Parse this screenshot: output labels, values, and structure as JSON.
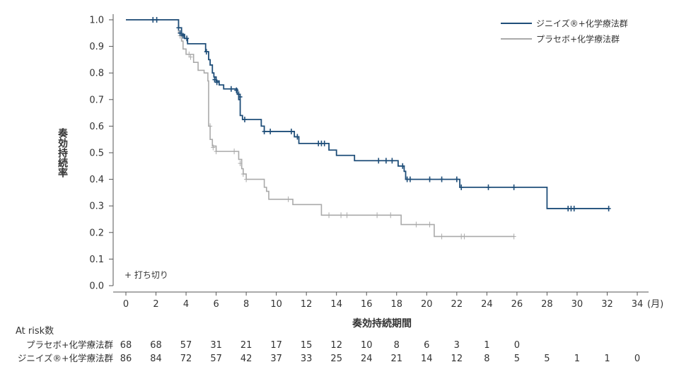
{
  "chart_data": {
    "type": "line",
    "subtype": "kaplan-meier",
    "ylabel": "奏効持続率",
    "xlabel": "奏効持続期間",
    "x_unit": "(月)",
    "xlim": [
      0,
      34
    ],
    "ylim": [
      0,
      1
    ],
    "x_ticks": [
      0,
      2,
      4,
      6,
      8,
      10,
      12,
      14,
      16,
      18,
      20,
      22,
      24,
      26,
      28,
      30,
      32,
      34
    ],
    "y_ticks": [
      0.0,
      0.1,
      0.2,
      0.3,
      0.4,
      0.5,
      0.6,
      0.7,
      0.8,
      0.9,
      1.0
    ],
    "y_tick_labels": [
      "0.0",
      "0.1",
      "0.2",
      "0.3",
      "0.4",
      "0.5",
      "0.6",
      "0.7",
      "0.8",
      "0.9",
      "1.0"
    ],
    "censor_note": "+ 打ち切り",
    "series": [
      {
        "name": "ジニイズ®+化学療法群",
        "color": "#1f4e79",
        "steps": [
          [
            0,
            1.0
          ],
          [
            3.5,
            0.97
          ],
          [
            3.7,
            0.945
          ],
          [
            3.9,
            0.93
          ],
          [
            4.1,
            0.91
          ],
          [
            5.3,
            0.88
          ],
          [
            5.5,
            0.85
          ],
          [
            5.6,
            0.83
          ],
          [
            5.75,
            0.8
          ],
          [
            5.85,
            0.785
          ],
          [
            6.0,
            0.77
          ],
          [
            6.2,
            0.755
          ],
          [
            6.5,
            0.74
          ],
          [
            7.4,
            0.72
          ],
          [
            7.5,
            0.7
          ],
          [
            7.6,
            0.64
          ],
          [
            7.75,
            0.625
          ],
          [
            9.0,
            0.6
          ],
          [
            9.2,
            0.58
          ],
          [
            11.2,
            0.56
          ],
          [
            11.5,
            0.535
          ],
          [
            13.5,
            0.51
          ],
          [
            14.0,
            0.49
          ],
          [
            15.2,
            0.47
          ],
          [
            18.1,
            0.45
          ],
          [
            18.5,
            0.43
          ],
          [
            18.6,
            0.4
          ],
          [
            22.2,
            0.37
          ],
          [
            28.0,
            0.29
          ]
        ],
        "end_x": 32.1,
        "censors": [
          [
            1.8,
            1.0
          ],
          [
            2.05,
            1.0
          ],
          [
            3.5,
            0.97
          ],
          [
            3.6,
            0.95
          ],
          [
            3.8,
            0.94
          ],
          [
            4.05,
            0.93
          ],
          [
            5.35,
            0.88
          ],
          [
            5.9,
            0.775
          ],
          [
            6.05,
            0.765
          ],
          [
            7.0,
            0.74
          ],
          [
            7.35,
            0.735
          ],
          [
            7.5,
            0.72
          ],
          [
            7.6,
            0.71
          ],
          [
            7.9,
            0.625
          ],
          [
            9.2,
            0.58
          ],
          [
            9.6,
            0.58
          ],
          [
            11.0,
            0.58
          ],
          [
            11.4,
            0.56
          ],
          [
            12.8,
            0.535
          ],
          [
            13.0,
            0.535
          ],
          [
            13.2,
            0.535
          ],
          [
            16.8,
            0.47
          ],
          [
            17.3,
            0.47
          ],
          [
            17.7,
            0.47
          ],
          [
            18.4,
            0.45
          ],
          [
            18.7,
            0.4
          ],
          [
            18.9,
            0.4
          ],
          [
            20.2,
            0.4
          ],
          [
            21.0,
            0.4
          ],
          [
            22.0,
            0.4
          ],
          [
            22.3,
            0.37
          ],
          [
            24.1,
            0.37
          ],
          [
            25.8,
            0.37
          ],
          [
            29.4,
            0.29
          ],
          [
            29.6,
            0.29
          ],
          [
            29.8,
            0.29
          ],
          [
            32.1,
            0.29
          ]
        ]
      },
      {
        "name": "プラセボ+化学療法群",
        "color": "#aaaaaa",
        "steps": [
          [
            0,
            1.0
          ],
          [
            3.5,
            0.95
          ],
          [
            3.7,
            0.92
          ],
          [
            3.8,
            0.89
          ],
          [
            4.0,
            0.87
          ],
          [
            4.5,
            0.84
          ],
          [
            4.8,
            0.81
          ],
          [
            5.2,
            0.8
          ],
          [
            5.45,
            0.77
          ],
          [
            5.5,
            0.6
          ],
          [
            5.6,
            0.55
          ],
          [
            5.75,
            0.525
          ],
          [
            6.0,
            0.505
          ],
          [
            7.5,
            0.475
          ],
          [
            7.7,
            0.44
          ],
          [
            7.8,
            0.42
          ],
          [
            8.0,
            0.4
          ],
          [
            9.2,
            0.37
          ],
          [
            9.35,
            0.355
          ],
          [
            9.5,
            0.325
          ],
          [
            11.1,
            0.305
          ],
          [
            13.0,
            0.265
          ],
          [
            18.3,
            0.23
          ],
          [
            20.5,
            0.185
          ]
        ],
        "end_x": 25.8,
        "censors": [
          [
            3.6,
            0.94
          ],
          [
            4.2,
            0.87
          ],
          [
            4.3,
            0.86
          ],
          [
            5.6,
            0.6
          ],
          [
            5.8,
            0.52
          ],
          [
            6.0,
            0.505
          ],
          [
            7.2,
            0.505
          ],
          [
            7.6,
            0.46
          ],
          [
            7.8,
            0.42
          ],
          [
            8.0,
            0.4
          ],
          [
            10.8,
            0.325
          ],
          [
            13.5,
            0.265
          ],
          [
            14.3,
            0.265
          ],
          [
            14.7,
            0.265
          ],
          [
            16.7,
            0.265
          ],
          [
            17.6,
            0.265
          ],
          [
            19.3,
            0.23
          ],
          [
            20.2,
            0.23
          ],
          [
            21.0,
            0.185
          ],
          [
            22.3,
            0.185
          ],
          [
            22.5,
            0.185
          ],
          [
            25.8,
            0.185
          ]
        ]
      }
    ]
  },
  "risk_table": {
    "title": "At risk数",
    "columns": [
      0,
      2,
      4,
      6,
      8,
      10,
      12,
      14,
      16,
      18,
      20,
      22,
      24,
      26,
      28,
      30,
      32,
      34
    ],
    "rows": [
      {
        "label": "プラセボ+化学療法群",
        "values": [
          "68",
          "68",
          "57",
          "31",
          "21",
          "17",
          "15",
          "12",
          "10",
          "8",
          "6",
          "3",
          "1",
          "0"
        ]
      },
      {
        "label": "ジニイズ®+化学療法群",
        "values": [
          "86",
          "84",
          "72",
          "57",
          "42",
          "37",
          "33",
          "25",
          "24",
          "21",
          "14",
          "12",
          "8",
          "5",
          "5",
          "1",
          "1",
          "0"
        ]
      }
    ]
  }
}
